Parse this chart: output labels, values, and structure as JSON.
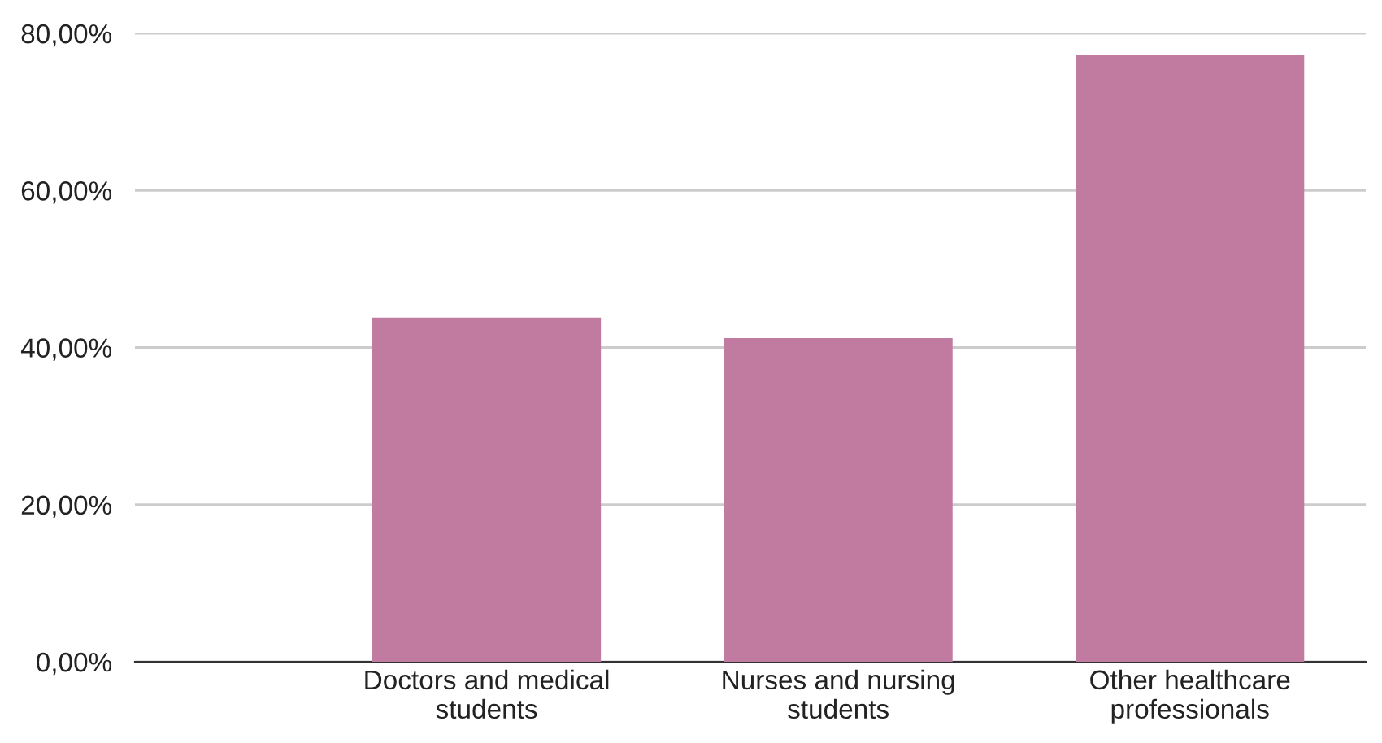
{
  "chart_data": {
    "type": "bar",
    "categories": [
      "Doctors and medical\nstudents",
      "Nurses and nursing\nstudents",
      "Other healthcare\nprofessionals"
    ],
    "values": [
      43.8,
      41.2,
      77.2
    ],
    "color": "#c27ba0",
    "ylim": [
      0,
      80
    ],
    "yticks": [
      {
        "value": 0,
        "label": "0,00%"
      },
      {
        "value": 20,
        "label": "20,00%"
      },
      {
        "value": 40,
        "label": "40,00%"
      },
      {
        "value": 60,
        "label": "60,00%"
      },
      {
        "value": 80,
        "label": "80,00%"
      }
    ],
    "grid": "y"
  }
}
